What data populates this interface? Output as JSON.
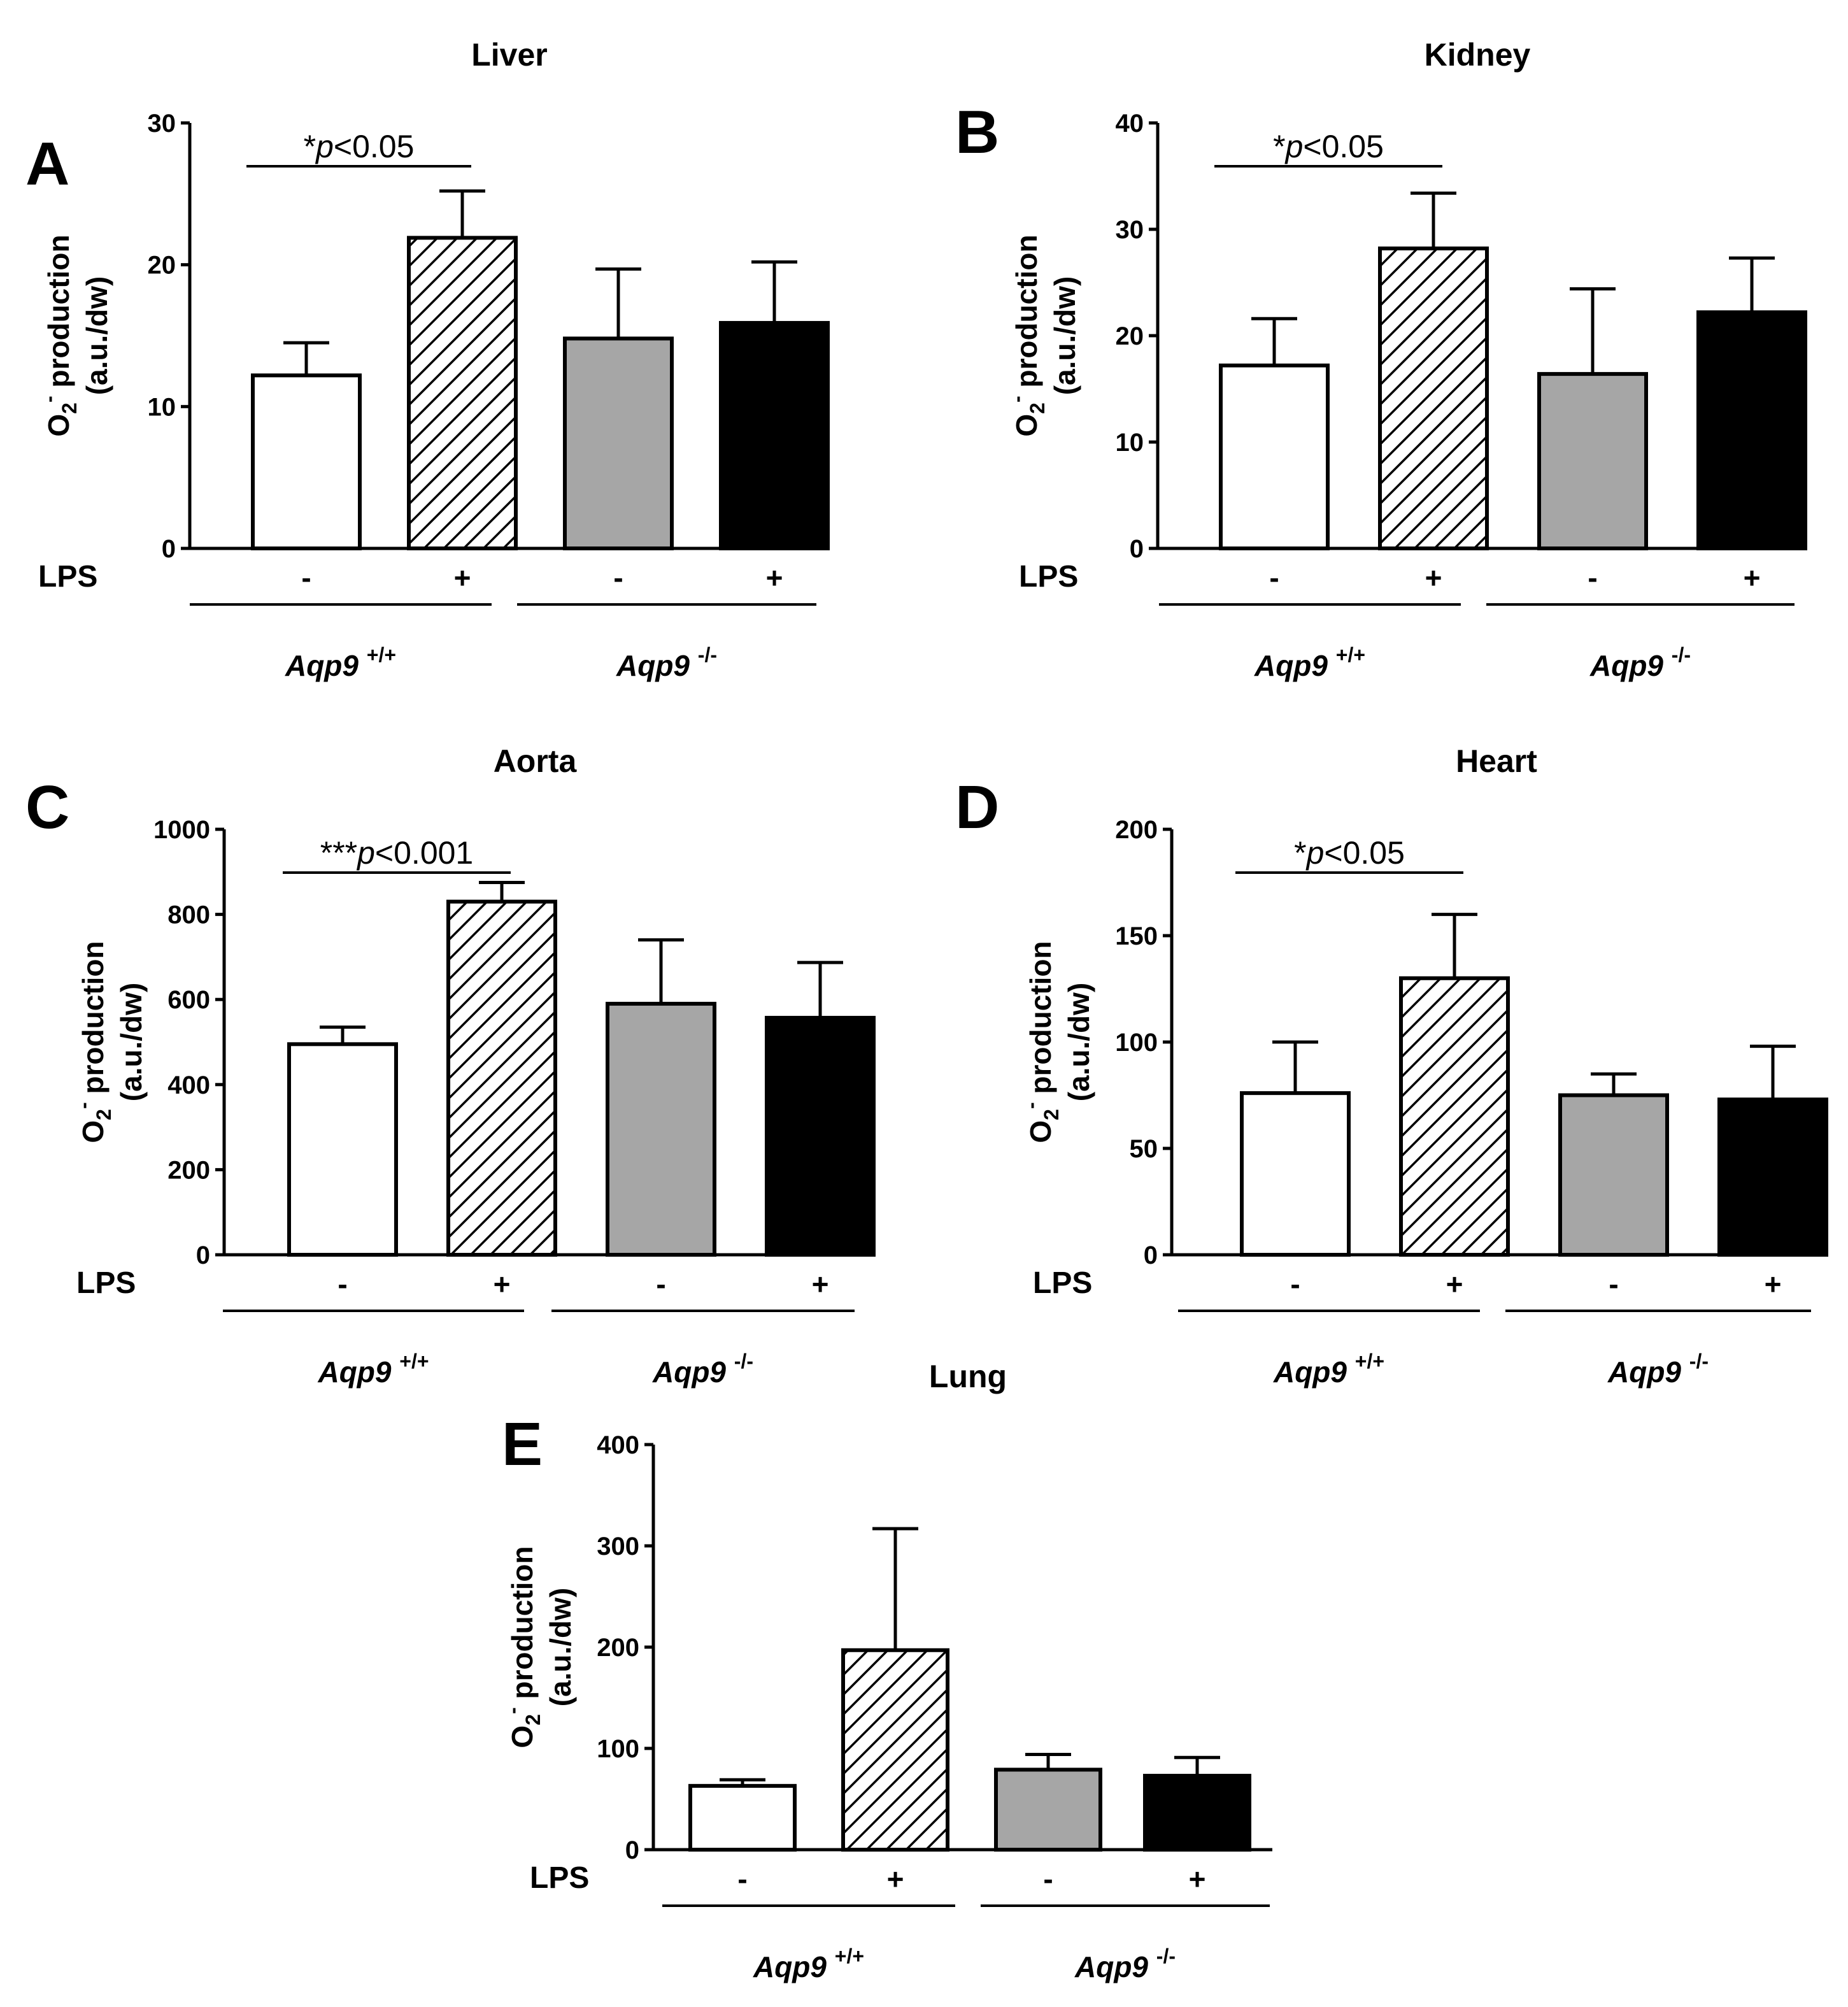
{
  "chart_data": [
    {
      "panel": "A",
      "title": "Liver",
      "type": "bar",
      "ylabel": "O2- production",
      "ylabel_sub": "2",
      "ylabel_sup": "-",
      "ylabel_line2": "(a.u./dw)",
      "ylim": [
        0,
        30
      ],
      "yticks": [
        0,
        10,
        20,
        30
      ],
      "x_variable": "LPS",
      "categories": [
        "-",
        "+",
        "-",
        "+"
      ],
      "values": [
        12.2,
        21.9,
        14.8,
        15.9
      ],
      "errors": [
        2.3,
        3.3,
        4.9,
        4.3
      ],
      "groups": [
        "Aqp9",
        "Aqp9"
      ],
      "group_superscripts": [
        "+/+",
        "-/-"
      ],
      "significance": {
        "label_prefix": "*",
        "p_italic": "p",
        "label_rest": "<0.05",
        "between": [
          0,
          1
        ]
      }
    },
    {
      "panel": "B",
      "title": "Kidney",
      "type": "bar",
      "ylabel": "O2- production",
      "ylabel_sub": "2",
      "ylabel_sup": "-",
      "ylabel_line2": "(a.u./dw)",
      "ylim": [
        0,
        40
      ],
      "yticks": [
        0,
        10,
        20,
        30,
        40
      ],
      "x_variable": "LPS",
      "categories": [
        "-",
        "+",
        "-",
        "+"
      ],
      "values": [
        17.2,
        28.2,
        16.4,
        22.2
      ],
      "errors": [
        4.4,
        5.2,
        8.0,
        5.1
      ],
      "groups": [
        "Aqp9",
        "Aqp9"
      ],
      "group_superscripts": [
        "+/+",
        "-/-"
      ],
      "significance": {
        "label_prefix": "*",
        "p_italic": "p",
        "label_rest": "<0.05",
        "between": [
          0,
          1
        ]
      }
    },
    {
      "panel": "C",
      "title": "Aorta",
      "type": "bar",
      "ylabel": "O2- production",
      "ylabel_sub": "2",
      "ylabel_sup": "-",
      "ylabel_line2": "(a.u./dw)",
      "ylim": [
        0,
        1000
      ],
      "yticks": [
        0,
        200,
        400,
        600,
        800,
        1000
      ],
      "x_variable": "LPS",
      "categories": [
        "-",
        "+",
        "-",
        "+"
      ],
      "values": [
        495,
        830,
        590,
        557
      ],
      "errors": [
        40,
        45,
        150,
        130
      ],
      "groups": [
        "Aqp9",
        "Aqp9"
      ],
      "group_superscripts": [
        "+/+",
        "-/-"
      ],
      "significance": {
        "label_prefix": "***",
        "p_italic": "p",
        "label_rest": "<0.001",
        "between": [
          0,
          1
        ]
      }
    },
    {
      "panel": "D",
      "title": "Heart",
      "type": "bar",
      "ylabel": "O2- production",
      "ylabel_sub": "2",
      "ylabel_sup": "-",
      "ylabel_line2": "(a.u./dw)",
      "ylim": [
        0,
        200
      ],
      "yticks": [
        0,
        50,
        100,
        150,
        200
      ],
      "x_variable": "LPS",
      "categories": [
        "-",
        "+",
        "-",
        "+"
      ],
      "values": [
        76,
        130,
        75,
        73
      ],
      "errors": [
        24,
        30,
        10,
        25
      ],
      "groups": [
        "Aqp9",
        "Aqp9"
      ],
      "group_superscripts": [
        "+/+",
        "-/-"
      ],
      "significance": {
        "label_prefix": "*",
        "p_italic": "p",
        "label_rest": "<0.05",
        "between": [
          0,
          1
        ]
      }
    },
    {
      "panel": "E",
      "title": "Lung",
      "type": "bar",
      "ylabel": "O2- production",
      "ylabel_sub": "2",
      "ylabel_sup": "-",
      "ylabel_line2": "(a.u./dw)",
      "ylim": [
        0,
        400
      ],
      "yticks": [
        0,
        100,
        200,
        300,
        400
      ],
      "x_variable": "LPS",
      "categories": [
        "-",
        "+",
        "-",
        "+"
      ],
      "values": [
        63,
        197,
        79,
        73
      ],
      "errors": [
        6,
        120,
        15,
        18
      ],
      "groups": [
        "Aqp9",
        "Aqp9"
      ],
      "group_superscripts": [
        "+/+",
        "-/-"
      ],
      "significance": null
    }
  ],
  "bar_styles": {
    "fills": [
      "#ffffff",
      "hatch",
      "#a6a6a6",
      "#000000"
    ],
    "stroke": "#000000"
  }
}
